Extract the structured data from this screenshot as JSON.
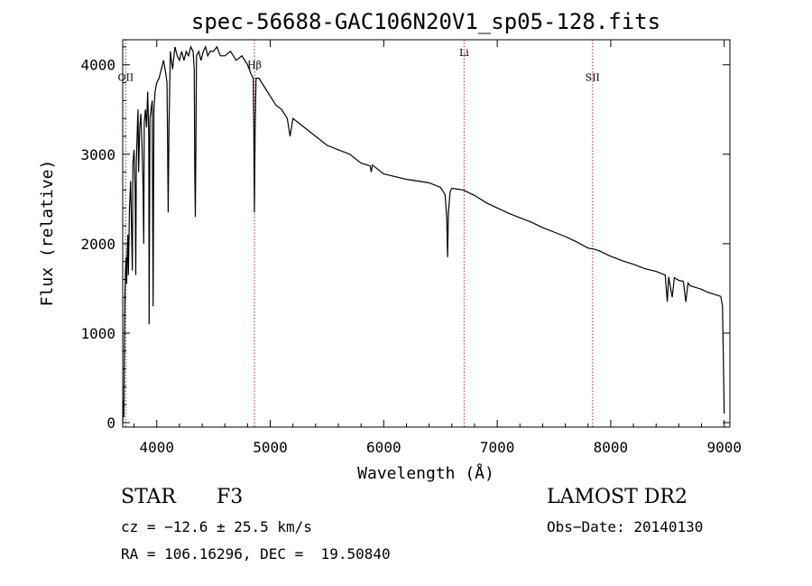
{
  "chart_data": {
    "type": "line",
    "title": "spec-56688-GAC106N20V1_sp05-128.fits",
    "xlabel": "Wavelength (Å)",
    "ylabel": "Flux (relative)",
    "xlim": [
      3700,
      9050
    ],
    "ylim": [
      -50,
      4280
    ],
    "xticks": [
      4000,
      5000,
      6000,
      7000,
      8000,
      9000
    ],
    "yticks": [
      0,
      1000,
      2000,
      3000,
      4000
    ],
    "xtick_labels": [
      "4000",
      "5000",
      "6000",
      "7000",
      "8000",
      "9000"
    ],
    "ytick_labels": [
      "0",
      "1000",
      "2000",
      "3000",
      "4000"
    ],
    "line_markers": [
      {
        "label": "OII",
        "wavelength": 3727,
        "label_flux": 3820
      },
      {
        "label": "Hβ",
        "wavelength": 4861,
        "label_flux": 3960
      },
      {
        "label": "Li",
        "wavelength": 6708,
        "label_flux": 4100
      },
      {
        "label": "SII",
        "wavelength": 7840,
        "label_flux": 3820
      }
    ],
    "series": [
      {
        "name": "flux",
        "color": "#000000",
        "marker_color": "#b03030",
        "x": [
          3700,
          3705,
          3710,
          3715,
          3720,
          3725,
          3730,
          3735,
          3740,
          3745,
          3750,
          3760,
          3770,
          3780,
          3785,
          3790,
          3800,
          3810,
          3815,
          3820,
          3830,
          3835,
          3840,
          3850,
          3860,
          3870,
          3880,
          3885,
          3890,
          3900,
          3910,
          3920,
          3930,
          3933,
          3940,
          3950,
          3960,
          3968,
          3975,
          3985,
          4000,
          4020,
          4040,
          4060,
          4080,
          4090,
          4095,
          4101,
          4108,
          4120,
          4140,
          4160,
          4180,
          4200,
          4220,
          4240,
          4260,
          4280,
          4300,
          4320,
          4330,
          4335,
          4340,
          4345,
          4350,
          4370,
          4390,
          4410,
          4430,
          4450,
          4470,
          4500,
          4530,
          4560,
          4600,
          4650,
          4700,
          4750,
          4800,
          4830,
          4850,
          4855,
          4861,
          4867,
          4875,
          4900,
          4950,
          5000,
          5050,
          5100,
          5150,
          5175,
          5200,
          5250,
          5300,
          5400,
          5500,
          5600,
          5700,
          5800,
          5880,
          5890,
          5900,
          5950,
          6000,
          6100,
          6200,
          6300,
          6400,
          6500,
          6540,
          6555,
          6563,
          6570,
          6585,
          6600,
          6650,
          6700,
          6800,
          6900,
          7000,
          7100,
          7200,
          7300,
          7400,
          7500,
          7600,
          7700,
          7800,
          7850,
          7900,
          8000,
          8100,
          8200,
          8300,
          8400,
          8480,
          8498,
          8510,
          8542,
          8560,
          8600,
          8640,
          8662,
          8680,
          8700,
          8750,
          8800,
          8850,
          8900,
          8950,
          8970,
          8985,
          8995,
          9000
        ],
        "values": [
          0,
          250,
          60,
          900,
          1450,
          1700,
          1850,
          1550,
          1900,
          2100,
          1650,
          2400,
          2700,
          2000,
          1700,
          2900,
          3050,
          2600,
          1650,
          2900,
          3350,
          3500,
          2800,
          3300,
          3450,
          3100,
          2600,
          2000,
          3350,
          3500,
          3300,
          3700,
          3200,
          1100,
          3400,
          3500,
          3600,
          1300,
          3500,
          3700,
          3800,
          3850,
          3950,
          4050,
          3900,
          3800,
          3200,
          2350,
          3300,
          4150,
          3950,
          4200,
          4100,
          4050,
          4150,
          4050,
          4150,
          4100,
          4200,
          4150,
          3950,
          2800,
          2300,
          3100,
          4100,
          4150,
          4050,
          4150,
          4200,
          4100,
          4150,
          4150,
          4200,
          4100,
          4100,
          4150,
          4050,
          4100,
          4000,
          3900,
          3850,
          3300,
          2350,
          3300,
          3850,
          3850,
          3750,
          3650,
          3550,
          3500,
          3400,
          3200,
          3400,
          3350,
          3300,
          3200,
          3100,
          3050,
          3000,
          2900,
          2870,
          2800,
          2880,
          2830,
          2780,
          2750,
          2720,
          2700,
          2680,
          2630,
          2550,
          2300,
          1850,
          2350,
          2580,
          2620,
          2610,
          2600,
          2540,
          2460,
          2400,
          2340,
          2290,
          2240,
          2180,
          2130,
          2080,
          2020,
          1950,
          1940,
          1920,
          1860,
          1810,
          1770,
          1720,
          1690,
          1650,
          1350,
          1630,
          1400,
          1620,
          1590,
          1580,
          1350,
          1560,
          1530,
          1510,
          1490,
          1460,
          1440,
          1420,
          1410,
          1300,
          500,
          100
        ]
      }
    ]
  },
  "info": {
    "object_class": "STAR",
    "subclass": "F3",
    "survey": "LAMOST DR2",
    "cz": "cz = −12.6 ± 25.5 km/s",
    "obs_date": "Obs−Date: 20140130",
    "coords": "RA = 106.16296, DEC =  19.50840"
  }
}
